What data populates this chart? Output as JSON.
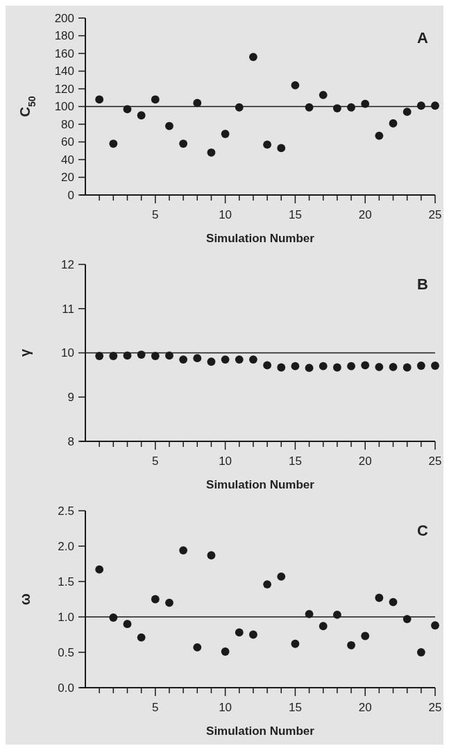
{
  "chart_data": [
    {
      "type": "scatter",
      "ylabel": "C$_{50}$",
      "xlabel": "Simulation Number",
      "annotations": [
        "A"
      ],
      "marker": "circle",
      "grid": false,
      "x": [
        1,
        2,
        3,
        4,
        5,
        6,
        7,
        8,
        9,
        10,
        11,
        12,
        13,
        14,
        15,
        16,
        17,
        18,
        19,
        20,
        21,
        22,
        23,
        24,
        25
      ],
      "series": [
        {
          "color": "#1a1a1a",
          "values": [
            108,
            58,
            97,
            90,
            108,
            78,
            58,
            104,
            48,
            69,
            99,
            156,
            57,
            53,
            124,
            99,
            113,
            98,
            99,
            103,
            67,
            81,
            94,
            101,
            101
          ]
        }
      ],
      "xlim": [
        0,
        25
      ],
      "xticks": [
        {
          "value": 1,
          "label": null
        },
        {
          "value": 2,
          "label": null
        },
        {
          "value": 3,
          "label": null
        },
        {
          "value": 4,
          "label": null
        },
        5,
        {
          "value": 6,
          "label": null
        },
        {
          "value": 7,
          "label": null
        },
        {
          "value": 8,
          "label": null
        },
        {
          "value": 9,
          "label": null
        },
        10,
        {
          "value": 11,
          "label": null
        },
        {
          "value": 12,
          "label": null
        },
        {
          "value": 13,
          "label": null
        },
        {
          "value": 14,
          "label": null
        },
        15,
        {
          "value": 16,
          "label": null
        },
        {
          "value": 17,
          "label": null
        },
        {
          "value": 18,
          "label": null
        },
        {
          "value": 19,
          "label": null
        },
        20,
        {
          "value": 21,
          "label": null
        },
        {
          "value": 22,
          "label": null
        },
        {
          "value": 23,
          "label": null
        },
        {
          "value": 24,
          "label": null
        },
        25
      ],
      "ylim": [
        0,
        200
      ],
      "yticks": [
        0,
        20,
        40,
        60,
        80,
        100,
        120,
        140,
        160,
        180,
        200
      ],
      "ref_lines": [
        {
          "axis": "y",
          "value": 100,
          "color": "#1a1a1a"
        }
      ]
    },
    {
      "type": "scatter",
      "ylabel": "γ",
      "xlabel": "Simulation Number",
      "annotations": [
        "B"
      ],
      "marker": "circle",
      "grid": false,
      "x": [
        1,
        2,
        3,
        4,
        5,
        6,
        7,
        8,
        9,
        10,
        11,
        12,
        13,
        14,
        15,
        16,
        17,
        18,
        19,
        20,
        21,
        22,
        23,
        24,
        25
      ],
      "series": [
        {
          "color": "#1a1a1a",
          "values": [
            9.93,
            9.93,
            9.94,
            9.96,
            9.93,
            9.94,
            9.85,
            9.88,
            9.8,
            9.85,
            9.85,
            9.85,
            9.72,
            9.67,
            9.7,
            9.66,
            9.7,
            9.67,
            9.7,
            9.72,
            9.68,
            9.68,
            9.67,
            9.71,
            9.71
          ]
        }
      ],
      "xlim": [
        0,
        25
      ],
      "xticks": [
        {
          "value": 1,
          "label": null
        },
        {
          "value": 2,
          "label": null
        },
        {
          "value": 3,
          "label": null
        },
        {
          "value": 4,
          "label": null
        },
        5,
        {
          "value": 6,
          "label": null
        },
        {
          "value": 7,
          "label": null
        },
        {
          "value": 8,
          "label": null
        },
        {
          "value": 9,
          "label": null
        },
        10,
        {
          "value": 11,
          "label": null
        },
        {
          "value": 12,
          "label": null
        },
        {
          "value": 13,
          "label": null
        },
        {
          "value": 14,
          "label": null
        },
        15,
        {
          "value": 16,
          "label": null
        },
        {
          "value": 17,
          "label": null
        },
        {
          "value": 18,
          "label": null
        },
        {
          "value": 19,
          "label": null
        },
        20,
        {
          "value": 21,
          "label": null
        },
        {
          "value": 22,
          "label": null
        },
        {
          "value": 23,
          "label": null
        },
        {
          "value": 24,
          "label": null
        },
        25
      ],
      "ylim": [
        8,
        12
      ],
      "yticks": [
        8,
        9,
        10,
        11,
        12
      ],
      "ref_lines": [
        {
          "axis": "y",
          "value": 10,
          "color": "#1a1a1a"
        }
      ]
    },
    {
      "type": "scatter",
      "ylabel": "ω",
      "xlabel": "Simulation Number",
      "annotations": [
        "C"
      ],
      "marker": "circle",
      "grid": false,
      "x": [
        1,
        2,
        3,
        4,
        5,
        6,
        7,
        8,
        9,
        10,
        11,
        12,
        13,
        14,
        15,
        16,
        17,
        18,
        19,
        20,
        21,
        22,
        23,
        24,
        25
      ],
      "series": [
        {
          "color": "#1a1a1a",
          "values": [
            1.67,
            0.99,
            0.9,
            0.71,
            1.25,
            1.2,
            1.94,
            0.57,
            1.87,
            0.51,
            0.78,
            0.75,
            1.46,
            1.57,
            0.62,
            1.04,
            0.87,
            1.03,
            0.6,
            0.73,
            1.27,
            1.21,
            0.97,
            0.5,
            0.88
          ]
        }
      ],
      "xlim": [
        0,
        25
      ],
      "xticks": [
        {
          "value": 1,
          "label": null
        },
        {
          "value": 2,
          "label": null
        },
        {
          "value": 3,
          "label": null
        },
        {
          "value": 4,
          "label": null
        },
        5,
        {
          "value": 6,
          "label": null
        },
        {
          "value": 7,
          "label": null
        },
        {
          "value": 8,
          "label": null
        },
        {
          "value": 9,
          "label": null
        },
        10,
        {
          "value": 11,
          "label": null
        },
        {
          "value": 12,
          "label": null
        },
        {
          "value": 13,
          "label": null
        },
        {
          "value": 14,
          "label": null
        },
        15,
        {
          "value": 16,
          "label": null
        },
        {
          "value": 17,
          "label": null
        },
        {
          "value": 18,
          "label": null
        },
        {
          "value": 19,
          "label": null
        },
        20,
        {
          "value": 21,
          "label": null
        },
        {
          "value": 22,
          "label": null
        },
        {
          "value": 23,
          "label": null
        },
        {
          "value": 24,
          "label": null
        },
        25
      ],
      "ylim": [
        0,
        2.5
      ],
      "yticks": [
        {
          "value": 0,
          "label": "0.0"
        },
        {
          "value": 0.5,
          "label": "0.5"
        },
        {
          "value": 1,
          "label": "1.0"
        },
        {
          "value": 1.5,
          "label": "1.5"
        },
        {
          "value": 2,
          "label": "2.0"
        },
        {
          "value": 2.5,
          "label": "2.5"
        }
      ],
      "ref_lines": [
        {
          "axis": "y",
          "value": 1,
          "color": "#1a1a1a"
        }
      ]
    }
  ]
}
